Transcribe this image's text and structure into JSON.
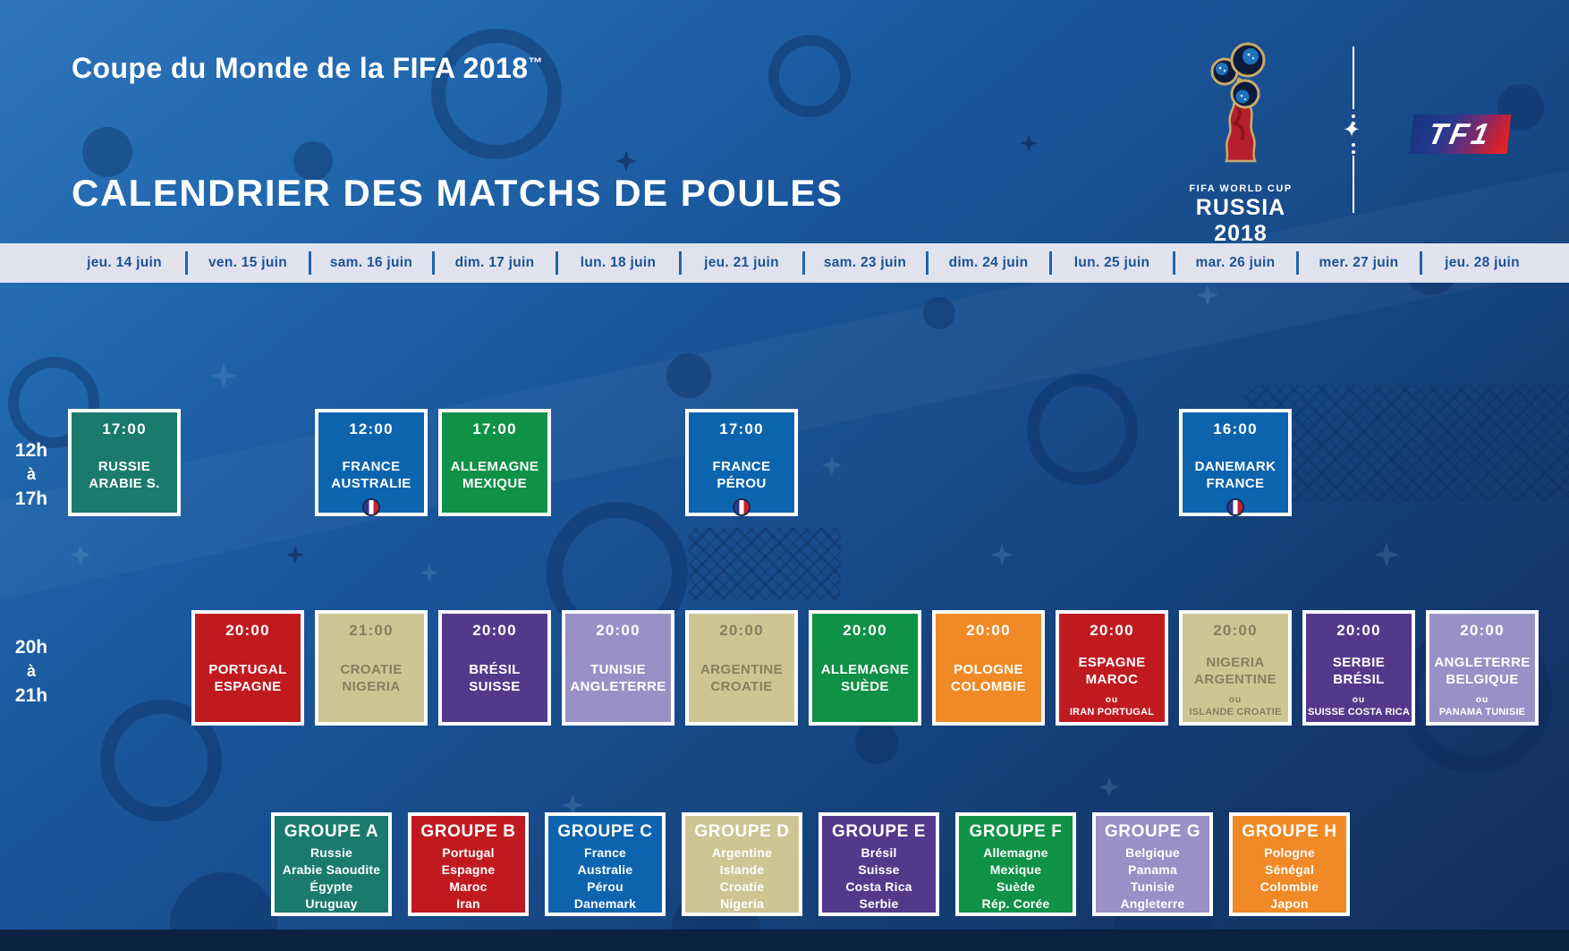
{
  "header": {
    "supertitle": "Coupe du Monde de la FIFA 2018",
    "trademark": "™",
    "title": "CALENDRIER DES MATCHS DE POULES",
    "fifa_logo": {
      "line1": "FIFA WORLD CUP",
      "line2": "RUSSIA 2018"
    },
    "broadcaster": "TF1"
  },
  "icons": {
    "trophy": "fifa-world-cup-trophy-logo",
    "match_flag": "france-flag-icon",
    "divider_star": "four-point-star-icon"
  },
  "calendar": {
    "dates": [
      "jeu. 14 juin",
      "ven. 15 juin",
      "sam. 16 juin",
      "dim. 17 juin",
      "lun. 18 juin",
      "jeu. 21 juin",
      "sam. 23 juin",
      "dim. 24 juin",
      "lun. 25 juin",
      "mar. 26 juin",
      "mer. 27 juin",
      "jeu. 28 juin"
    ]
  },
  "rows": [
    {
      "label_lines": [
        "12h",
        "à",
        "17h"
      ],
      "matches": [
        {
          "time": "17:00",
          "teams": [
            "RUSSIE",
            "ARABIE S."
          ],
          "column": 1,
          "color": "teal",
          "flag": false
        },
        {
          "time": "12:00",
          "teams": [
            "FRANCE",
            "AUSTRALIE"
          ],
          "column": 3,
          "color": "blue",
          "flag": true
        },
        {
          "time": "17:00",
          "teams": [
            "ALLEMAGNE",
            "MEXIQUE"
          ],
          "column": 4,
          "color": "green",
          "flag": false
        },
        {
          "time": "17:00",
          "teams": [
            "FRANCE",
            "PÉROU"
          ],
          "column": 6,
          "color": "blue",
          "flag": true
        },
        {
          "time": "16:00",
          "teams": [
            "DANEMARK",
            "FRANCE"
          ],
          "column": 10,
          "color": "blue",
          "flag": true
        }
      ]
    },
    {
      "label_lines": [
        "20h",
        "à",
        "21h"
      ],
      "matches": [
        {
          "time": "20:00",
          "teams": [
            "PORTUGAL",
            "ESPAGNE"
          ],
          "column": 2,
          "color": "red",
          "flag": false
        },
        {
          "time": "21:00",
          "teams": [
            "CROATIE",
            "NIGERIA"
          ],
          "column": 3,
          "color": "tan",
          "flag": false
        },
        {
          "time": "20:00",
          "teams": [
            "BRÉSIL",
            "SUISSE"
          ],
          "column": 4,
          "color": "purple",
          "flag": false
        },
        {
          "time": "20:00",
          "teams": [
            "TUNISIE",
            "ANGLETERRE"
          ],
          "column": 5,
          "color": "lavender",
          "flag": false
        },
        {
          "time": "20:00",
          "teams": [
            "ARGENTINE",
            "CROATIE"
          ],
          "column": 6,
          "color": "tan",
          "flag": false
        },
        {
          "time": "20:00",
          "teams": [
            "ALLEMAGNE",
            "SUÈDE"
          ],
          "column": 7,
          "color": "green",
          "flag": false
        },
        {
          "time": "20:00",
          "teams": [
            "POLOGNE",
            "COLOMBIE"
          ],
          "column": 8,
          "color": "orange",
          "flag": false
        },
        {
          "time": "20:00",
          "teams": [
            "ESPAGNE",
            "MAROC"
          ],
          "column": 9,
          "color": "red",
          "flag": false,
          "or_label": "ou",
          "alt_teams": "IRAN PORTUGAL"
        },
        {
          "time": "20:00",
          "teams": [
            "NIGERIA",
            "ARGENTINE"
          ],
          "column": 10,
          "color": "tan",
          "flag": false,
          "or_label": "ou",
          "alt_teams": "ISLANDE CROATIE"
        },
        {
          "time": "20:00",
          "teams": [
            "SERBIE",
            "BRÉSIL"
          ],
          "column": 11,
          "color": "purple",
          "flag": false,
          "or_label": "ou",
          "alt_teams": "SUISSE COSTA RICA"
        },
        {
          "time": "20:00",
          "teams": [
            "ANGLETERRE",
            "BELGIQUE"
          ],
          "column": 12,
          "color": "lavender",
          "flag": false,
          "or_label": "ou",
          "alt_teams": "PANAMA TUNISIE"
        }
      ]
    }
  ],
  "groups": [
    {
      "name": "GROUPE A",
      "color": "teal",
      "teams": [
        "Russie",
        "Arabie Saoudite",
        "Égypte",
        "Uruguay"
      ]
    },
    {
      "name": "GROUPE B",
      "color": "red",
      "teams": [
        "Portugal",
        "Espagne",
        "Maroc",
        "Iran"
      ]
    },
    {
      "name": "GROUPE C",
      "color": "blue",
      "teams": [
        "France",
        "Australie",
        "Pérou",
        "Danemark"
      ]
    },
    {
      "name": "GROUPE D",
      "color": "tan",
      "teams": [
        "Argentine",
        "Islande",
        "Croatie",
        "Nigeria"
      ]
    },
    {
      "name": "GROUPE E",
      "color": "purple",
      "teams": [
        "Brésil",
        "Suisse",
        "Costa Rica",
        "Serbie"
      ]
    },
    {
      "name": "GROUPE F",
      "color": "green",
      "teams": [
        "Allemagne",
        "Mexique",
        "Suède",
        "Rép. Corée"
      ]
    },
    {
      "name": "GROUPE G",
      "color": "lavender",
      "teams": [
        "Belgique",
        "Panama",
        "Tunisie",
        "Angleterre"
      ]
    },
    {
      "name": "GROUPE H",
      "color": "orange",
      "teams": [
        "Pologne",
        "Sénégal",
        "Colombie",
        "Japon"
      ]
    }
  ],
  "colors": {
    "teal": "#1a7a6d",
    "blue": "#0d64ae",
    "green": "#0f9147",
    "red": "#c01a20",
    "tan": "#cfc493",
    "purple": "#54398b",
    "lavender": "#9a90c6",
    "orange": "#f08a26",
    "tan_text": "#857f60",
    "bar_bg": "#e0e3ed",
    "bar_text": "#1d5296",
    "background_blue": "#174a88"
  }
}
